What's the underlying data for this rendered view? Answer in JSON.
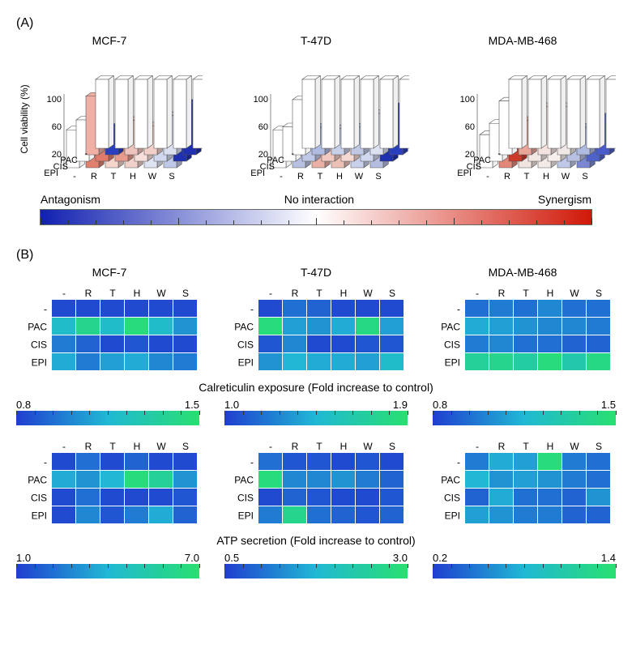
{
  "panelA": {
    "label": "(A)",
    "ylabel": "Cell viability (%)",
    "ytick_labels": [
      "20",
      "60",
      "100"
    ],
    "row_labels": [
      "PAC",
      "CIS",
      "EPI",
      "-"
    ],
    "col_labels": [
      "-",
      "R",
      "T",
      "H",
      "W",
      "S"
    ],
    "cell_lines": [
      "MCF-7",
      "T-47D",
      "MDA-MB-468"
    ],
    "barcharts": [
      {
        "heights": [
          [
            100,
            100,
            100,
            100,
            100,
            100
          ],
          [
            85,
            40,
            50,
            42,
            57,
            75
          ],
          [
            60,
            45,
            45,
            45,
            42,
            35
          ],
          [
            55,
            47,
            55,
            40,
            35,
            45
          ]
        ],
        "colors": [
          [
            "#ffffff",
            "#ffffff",
            "#ffffff",
            "#ffffff",
            "#ffffff",
            "#ffffff"
          ],
          [
            "#f0b0a5",
            "#2a3fbf",
            "#eec5bd",
            "#f2d0c9",
            "#dbe0f0",
            "#1e2fb0"
          ],
          [
            "#ffffff",
            "#e07a6a",
            "#e89a8d",
            "#f7e0db",
            "#d0d8f0",
            "#1e2fb0"
          ],
          [
            "#ffffff",
            "#e2806f",
            "#f5d4cc",
            "#f0d0c8",
            "#dfe4f3",
            "#c0c8e8"
          ]
        ]
      },
      {
        "heights": [
          [
            100,
            100,
            100,
            100,
            100,
            100
          ],
          [
            80,
            40,
            38,
            40,
            60,
            70
          ],
          [
            50,
            40,
            45,
            42,
            40,
            35
          ],
          [
            55,
            40,
            55,
            48,
            38,
            38
          ]
        ],
        "colors": [
          [
            "#ffffff",
            "#ffffff",
            "#ffffff",
            "#ffffff",
            "#ffffff",
            "#ffffff"
          ],
          [
            "#ffffff",
            "#b0bbe2",
            "#c8cfe8",
            "#c0c8e5",
            "#dde2f2",
            "#2a3fbf"
          ],
          [
            "#ffffff",
            "#c0c8e8",
            "#f2c9c0",
            "#f6d8d2",
            "#d0d8f0",
            "#1e2fb0"
          ],
          [
            "#ffffff",
            "#b8c0e2",
            "#eab0a5",
            "#edc0b6",
            "#c8d0ea",
            "#b5bee2"
          ]
        ]
      },
      {
        "heights": [
          [
            100,
            100,
            100,
            100,
            100,
            100
          ],
          [
            78,
            50,
            70,
            70,
            40,
            55
          ],
          [
            55,
            35,
            60,
            60,
            35,
            35
          ],
          [
            48,
            42,
            50,
            52,
            35,
            30
          ]
        ],
        "colors": [
          [
            "#ffffff",
            "#ffffff",
            "#ffffff",
            "#ffffff",
            "#ffffff",
            "#ffffff"
          ],
          [
            "#ffffff",
            "#e8a598",
            "#f4e2de",
            "#f0e8e6",
            "#b0bbe2",
            "#4a5ccc"
          ],
          [
            "#ffffff",
            "#cc3a2a",
            "#f2e8e4",
            "#f7efec",
            "#b8c0e2",
            "#5062cc"
          ],
          [
            "#ffffff",
            "#e28878",
            "#f0e4e0",
            "#f3ebe8",
            "#c0c8e8",
            "#7a88d4"
          ]
        ]
      }
    ],
    "legend": {
      "left": "Antagonism",
      "mid": "No interaction",
      "right": "Synergism"
    },
    "legend_gradient": [
      "#1020b0",
      "#ffffff",
      "#d01808"
    ]
  },
  "panelB": {
    "label": "(B)",
    "cell_lines": [
      "MCF-7",
      "T-47D",
      "MDA-MB-468"
    ],
    "row_labels": [
      "-",
      "PAC",
      "CIS",
      "EPI"
    ],
    "col_labels": [
      "-",
      "R",
      "T",
      "H",
      "W",
      "S"
    ],
    "heat_gradient": [
      "#203ed0",
      "#20b8d4",
      "#28e070"
    ],
    "calreticulin": {
      "title": "Calreticulin exposure (Fold increase to control)",
      "ranges": [
        {
          "lo": "0.8",
          "hi": "1.5"
        },
        {
          "lo": "1.0",
          "hi": "1.9"
        },
        {
          "lo": "0.8",
          "hi": "1.5"
        }
      ],
      "maps": [
        [
          [
            0.05,
            0.05,
            0.05,
            0.05,
            0.05,
            0.05
          ],
          [
            0.55,
            0.85,
            0.55,
            0.95,
            0.55,
            0.35
          ],
          [
            0.25,
            0.15,
            0.05,
            0.1,
            0.05,
            0.05
          ],
          [
            0.45,
            0.25,
            0.4,
            0.45,
            0.3,
            0.25
          ]
        ],
        [
          [
            0.05,
            0.2,
            0.15,
            0.05,
            0.05,
            0.05
          ],
          [
            0.95,
            0.4,
            0.35,
            0.45,
            0.9,
            0.4
          ],
          [
            0.1,
            0.3,
            0.05,
            0.05,
            0.1,
            0.1
          ],
          [
            0.35,
            0.5,
            0.45,
            0.45,
            0.4,
            0.55
          ]
        ],
        [
          [
            0.2,
            0.25,
            0.2,
            0.3,
            0.2,
            0.2
          ],
          [
            0.45,
            0.4,
            0.35,
            0.3,
            0.3,
            0.25
          ],
          [
            0.25,
            0.3,
            0.2,
            0.2,
            0.15,
            0.15
          ],
          [
            0.8,
            0.85,
            0.75,
            0.95,
            0.7,
            0.9
          ]
        ]
      ]
    },
    "atp": {
      "title": "ATP secretion (Fold increase to control)",
      "ranges": [
        {
          "lo": "1.0",
          "hi": "7.0"
        },
        {
          "lo": "0.5",
          "hi": "3.0"
        },
        {
          "lo": "0.2",
          "hi": "1.4"
        }
      ],
      "maps": [
        [
          [
            0.05,
            0.2,
            0.05,
            0.15,
            0.05,
            0.05
          ],
          [
            0.45,
            0.35,
            0.5,
            0.95,
            0.8,
            0.35
          ],
          [
            0.05,
            0.2,
            0.05,
            0.05,
            0.05,
            0.1
          ],
          [
            0.05,
            0.3,
            0.1,
            0.25,
            0.45,
            0.15
          ]
        ],
        [
          [
            0.2,
            0.1,
            0.1,
            0.05,
            0.1,
            0.05
          ],
          [
            0.95,
            0.3,
            0.3,
            0.35,
            0.25,
            0.15
          ],
          [
            0.05,
            0.15,
            0.1,
            0.05,
            0.05,
            0.1
          ],
          [
            0.25,
            0.85,
            0.2,
            0.15,
            0.1,
            0.15
          ]
        ],
        [
          [
            0.25,
            0.45,
            0.4,
            0.95,
            0.25,
            0.2
          ],
          [
            0.5,
            0.35,
            0.4,
            0.35,
            0.25,
            0.2
          ],
          [
            0.15,
            0.45,
            0.2,
            0.2,
            0.15,
            0.35
          ],
          [
            0.4,
            0.35,
            0.25,
            0.25,
            0.15,
            0.15
          ]
        ]
      ]
    }
  },
  "fonts": {
    "title": 14,
    "axis": 12,
    "label": 13
  }
}
